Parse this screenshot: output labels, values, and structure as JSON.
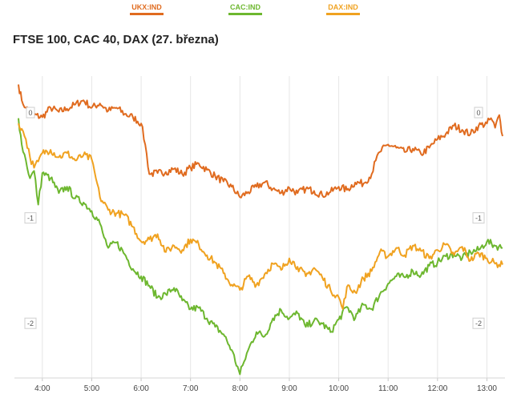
{
  "chart_data": {
    "type": "line",
    "title": "FTSE 100, CAC 40, DAX (27. března)",
    "xlabel": "",
    "ylabel": "",
    "x_ticks": [
      "4:00",
      "5:00",
      "6:00",
      "7:00",
      "8:00",
      "9:00",
      "10:00",
      "11:00",
      "12:00",
      "13:00"
    ],
    "x_range": [
      "3:30",
      "13:20"
    ],
    "y_ticks": [
      "0",
      "-1",
      "-2"
    ],
    "ylim": [
      -2.5,
      0.35
    ],
    "grid": "vertical",
    "legend": "top",
    "series": [
      {
        "name": "UKX:IND",
        "color": "#e06b1f",
        "points": [
          [
            "3:31",
            0.27
          ],
          [
            "3:35",
            0.12
          ],
          [
            "3:40",
            0.05
          ],
          [
            "3:50",
            -0.02
          ],
          [
            "4:00",
            -0.04
          ],
          [
            "4:10",
            0.05
          ],
          [
            "4:20",
            0.01
          ],
          [
            "4:30",
            0.04
          ],
          [
            "4:40",
            0.08
          ],
          [
            "4:50",
            0.12
          ],
          [
            "5:00",
            0.05
          ],
          [
            "5:10",
            0.09
          ],
          [
            "5:20",
            0.02
          ],
          [
            "5:30",
            0.05
          ],
          [
            "5:40",
            -0.01
          ],
          [
            "5:50",
            -0.04
          ],
          [
            "6:00",
            -0.1
          ],
          [
            "6:05",
            -0.3
          ],
          [
            "6:10",
            -0.58
          ],
          [
            "6:20",
            -0.57
          ],
          [
            "6:30",
            -0.56
          ],
          [
            "6:40",
            -0.53
          ],
          [
            "6:50",
            -0.58
          ],
          [
            "7:00",
            -0.52
          ],
          [
            "7:10",
            -0.48
          ],
          [
            "7:20",
            -0.54
          ],
          [
            "7:30",
            -0.6
          ],
          [
            "7:40",
            -0.65
          ],
          [
            "7:50",
            -0.7
          ],
          [
            "8:00",
            -0.8
          ],
          [
            "8:10",
            -0.75
          ],
          [
            "8:20",
            -0.7
          ],
          [
            "8:30",
            -0.66
          ],
          [
            "8:40",
            -0.72
          ],
          [
            "8:50",
            -0.76
          ],
          [
            "9:00",
            -0.71
          ],
          [
            "9:10",
            -0.76
          ],
          [
            "9:20",
            -0.72
          ],
          [
            "9:30",
            -0.74
          ],
          [
            "9:40",
            -0.78
          ],
          [
            "9:50",
            -0.75
          ],
          [
            "10:00",
            -0.7
          ],
          [
            "10:10",
            -0.73
          ],
          [
            "10:20",
            -0.66
          ],
          [
            "10:30",
            -0.67
          ],
          [
            "10:40",
            -0.58
          ],
          [
            "10:45",
            -0.45
          ],
          [
            "10:50",
            -0.37
          ],
          [
            "11:00",
            -0.3
          ],
          [
            "11:10",
            -0.33
          ],
          [
            "11:20",
            -0.37
          ],
          [
            "11:30",
            -0.34
          ],
          [
            "11:40",
            -0.39
          ],
          [
            "11:50",
            -0.33
          ],
          [
            "12:00",
            -0.25
          ],
          [
            "12:10",
            -0.2
          ],
          [
            "12:20",
            -0.12
          ],
          [
            "12:30",
            -0.16
          ],
          [
            "12:40",
            -0.2
          ],
          [
            "12:50",
            -0.12
          ],
          [
            "13:00",
            -0.1
          ],
          [
            "13:05",
            -0.05
          ],
          [
            "13:10",
            -0.14
          ],
          [
            "13:15",
            -0.02
          ],
          [
            "13:19",
            -0.22
          ]
        ]
      },
      {
        "name": "CAC:IND",
        "color": "#6db72f",
        "points": [
          [
            "3:31",
            -0.05
          ],
          [
            "3:35",
            -0.3
          ],
          [
            "3:40",
            -0.45
          ],
          [
            "3:45",
            -0.62
          ],
          [
            "3:50",
            -0.55
          ],
          [
            "3:55",
            -0.87
          ],
          [
            "4:00",
            -0.57
          ],
          [
            "4:10",
            -0.62
          ],
          [
            "4:20",
            -0.76
          ],
          [
            "4:30",
            -0.7
          ],
          [
            "4:40",
            -0.81
          ],
          [
            "4:50",
            -0.85
          ],
          [
            "5:00",
            -0.93
          ],
          [
            "5:10",
            -1.05
          ],
          [
            "5:15",
            -1.18
          ],
          [
            "5:20",
            -1.28
          ],
          [
            "5:30",
            -1.23
          ],
          [
            "5:40",
            -1.34
          ],
          [
            "5:50",
            -1.48
          ],
          [
            "6:00",
            -1.55
          ],
          [
            "6:10",
            -1.64
          ],
          [
            "6:20",
            -1.75
          ],
          [
            "6:30",
            -1.72
          ],
          [
            "6:40",
            -1.66
          ],
          [
            "6:50",
            -1.78
          ],
          [
            "7:00",
            -1.86
          ],
          [
            "7:10",
            -1.85
          ],
          [
            "7:20",
            -1.95
          ],
          [
            "7:30",
            -2.03
          ],
          [
            "7:40",
            -2.1
          ],
          [
            "7:50",
            -2.25
          ],
          [
            "8:00",
            -2.48
          ],
          [
            "8:05",
            -2.36
          ],
          [
            "8:10",
            -2.25
          ],
          [
            "8:20",
            -2.08
          ],
          [
            "8:30",
            -2.12
          ],
          [
            "8:40",
            -1.95
          ],
          [
            "8:50",
            -1.87
          ],
          [
            "9:00",
            -1.95
          ],
          [
            "9:10",
            -1.9
          ],
          [
            "9:20",
            -2.03
          ],
          [
            "9:30",
            -1.97
          ],
          [
            "9:40",
            -2.0
          ],
          [
            "9:50",
            -2.08
          ],
          [
            "10:00",
            -1.96
          ],
          [
            "10:10",
            -1.84
          ],
          [
            "10:20",
            -1.95
          ],
          [
            "10:30",
            -1.82
          ],
          [
            "10:40",
            -1.86
          ],
          [
            "10:50",
            -1.72
          ],
          [
            "11:00",
            -1.62
          ],
          [
            "11:10",
            -1.55
          ],
          [
            "11:20",
            -1.56
          ],
          [
            "11:30",
            -1.5
          ],
          [
            "11:40",
            -1.54
          ],
          [
            "11:50",
            -1.45
          ],
          [
            "12:00",
            -1.42
          ],
          [
            "12:10",
            -1.36
          ],
          [
            "12:20",
            -1.34
          ],
          [
            "12:30",
            -1.38
          ],
          [
            "12:40",
            -1.32
          ],
          [
            "12:50",
            -1.3
          ],
          [
            "13:00",
            -1.22
          ],
          [
            "13:10",
            -1.26
          ],
          [
            "13:19",
            -1.28
          ]
        ]
      },
      {
        "name": "DAX:IND",
        "color": "#f0a220",
        "points": [
          [
            "3:31",
            -0.1
          ],
          [
            "3:35",
            -0.15
          ],
          [
            "3:40",
            -0.25
          ],
          [
            "3:45",
            -0.42
          ],
          [
            "3:50",
            -0.52
          ],
          [
            "3:55",
            -0.46
          ],
          [
            "4:00",
            -0.38
          ],
          [
            "4:10",
            -0.35
          ],
          [
            "4:20",
            -0.42
          ],
          [
            "4:30",
            -0.38
          ],
          [
            "4:40",
            -0.45
          ],
          [
            "4:50",
            -0.4
          ],
          [
            "5:00",
            -0.44
          ],
          [
            "5:05",
            -0.62
          ],
          [
            "5:10",
            -0.8
          ],
          [
            "5:20",
            -0.92
          ],
          [
            "5:30",
            -0.95
          ],
          [
            "5:40",
            -0.97
          ],
          [
            "5:50",
            -1.08
          ],
          [
            "6:00",
            -1.22
          ],
          [
            "6:10",
            -1.2
          ],
          [
            "6:20",
            -1.15
          ],
          [
            "6:30",
            -1.32
          ],
          [
            "6:40",
            -1.26
          ],
          [
            "6:50",
            -1.3
          ],
          [
            "7:00",
            -1.2
          ],
          [
            "7:10",
            -1.25
          ],
          [
            "7:20",
            -1.35
          ],
          [
            "7:30",
            -1.42
          ],
          [
            "7:40",
            -1.52
          ],
          [
            "7:50",
            -1.63
          ],
          [
            "8:00",
            -1.68
          ],
          [
            "8:10",
            -1.55
          ],
          [
            "8:20",
            -1.63
          ],
          [
            "8:30",
            -1.53
          ],
          [
            "8:40",
            -1.43
          ],
          [
            "8:50",
            -1.49
          ],
          [
            "9:00",
            -1.38
          ],
          [
            "9:10",
            -1.46
          ],
          [
            "9:20",
            -1.55
          ],
          [
            "9:30",
            -1.47
          ],
          [
            "9:40",
            -1.56
          ],
          [
            "9:50",
            -1.68
          ],
          [
            "10:00",
            -1.75
          ],
          [
            "10:05",
            -1.86
          ],
          [
            "10:10",
            -1.65
          ],
          [
            "10:20",
            -1.7
          ],
          [
            "10:30",
            -1.57
          ],
          [
            "10:40",
            -1.5
          ],
          [
            "10:50",
            -1.32
          ],
          [
            "11:00",
            -1.36
          ],
          [
            "11:10",
            -1.28
          ],
          [
            "11:20",
            -1.35
          ],
          [
            "11:30",
            -1.26
          ],
          [
            "11:40",
            -1.31
          ],
          [
            "11:50",
            -1.38
          ],
          [
            "12:00",
            -1.3
          ],
          [
            "12:10",
            -1.25
          ],
          [
            "12:20",
            -1.35
          ],
          [
            "12:30",
            -1.27
          ],
          [
            "12:40",
            -1.4
          ],
          [
            "12:50",
            -1.33
          ],
          [
            "13:00",
            -1.38
          ],
          [
            "13:10",
            -1.43
          ],
          [
            "13:19",
            -1.44
          ]
        ]
      }
    ]
  }
}
